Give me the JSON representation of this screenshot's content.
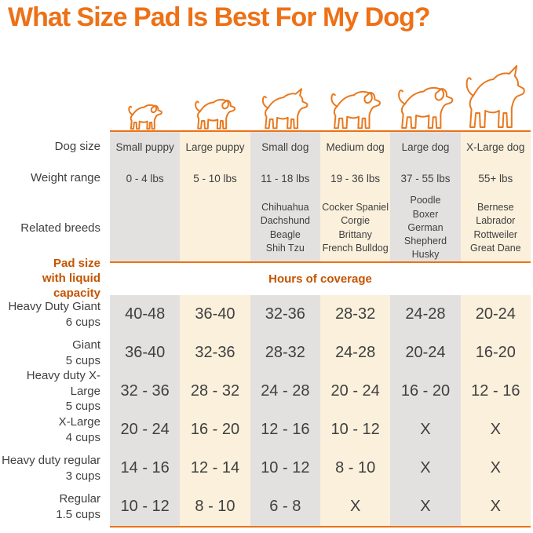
{
  "title": "What Size Pad Is Best For My Dog?",
  "row_labels": {
    "dog_size": "Dog size",
    "weight_range": "Weight range",
    "related_breeds": "Related breeds"
  },
  "section": {
    "pad_size_line1": "Pad size",
    "pad_size_line2": "with liquid capacity",
    "hours_label": "Hours of coverage"
  },
  "columns": [
    {
      "name": "Small puppy",
      "weight": "0 - 4 lbs",
      "breeds": []
    },
    {
      "name": "Large puppy",
      "weight": "5 - 10 lbs",
      "breeds": []
    },
    {
      "name": "Small dog",
      "weight": "11 - 18 lbs",
      "breeds": [
        "Chihuahua",
        "Dachshund",
        "Beagle",
        "Shih Tzu"
      ]
    },
    {
      "name": "Medium dog",
      "weight": "19 - 36 lbs",
      "breeds": [
        "Cocker Spaniel",
        "Corgie",
        "Brittany",
        "French Bulldog"
      ]
    },
    {
      "name": "Large dog",
      "weight": "37 - 55 lbs",
      "breeds": [
        "Poodle",
        "Boxer",
        "German Shepherd",
        "Husky"
      ]
    },
    {
      "name": "X-Large dog",
      "weight": "55+ lbs",
      "breeds": [
        "Bernese",
        "Labrador",
        "Rottweiler",
        "Great Dane"
      ]
    }
  ],
  "pad_rows": [
    {
      "label": "Heavy Duty Giant",
      "capacity": "6 cups",
      "values": [
        "40-48",
        "36-40",
        "32-36",
        "28-32",
        "24-28",
        "20-24"
      ]
    },
    {
      "label": "Giant",
      "capacity": "5 cups",
      "values": [
        "36-40",
        "32-36",
        "28-32",
        "24-28",
        "20-24",
        "16-20"
      ]
    },
    {
      "label": "Heavy duty X-Large",
      "capacity": "5 cups",
      "values": [
        "32 - 36",
        "28 - 32",
        "24 - 28",
        "20 - 24",
        "16 - 20",
        "12 - 16"
      ]
    },
    {
      "label": "X-Large",
      "capacity": "4 cups",
      "values": [
        "20 - 24",
        "16 - 20",
        "12 - 16",
        "10 - 12",
        "X",
        "X"
      ]
    },
    {
      "label": "Heavy duty regular",
      "capacity": "3 cups",
      "values": [
        "14 - 16",
        "12 - 14",
        "10 - 12",
        "8 - 10",
        "X",
        "X"
      ]
    },
    {
      "label": "Regular",
      "capacity": "1.5 cups",
      "values": [
        "10 - 12",
        "8 - 10",
        "6 - 8",
        "X",
        "X",
        "X"
      ]
    }
  ],
  "icons": [
    "small-puppy-dog-icon",
    "large-puppy-dog-icon",
    "small-dog-icon",
    "medium-dog-icon",
    "large-dog-icon",
    "x-large-dog-icon"
  ],
  "colors": {
    "accent_orange": "#ED7117",
    "section_orange": "#C45500",
    "dog_outline_orange": "#E8791F",
    "column_gray": "#E3E1E0",
    "column_cream": "#FAF0DC",
    "text_dark": "#3F3F3F"
  },
  "chart_data": {
    "type": "table",
    "title": "What Size Pad Is Best For My Dog?",
    "section_header": "Hours of coverage",
    "columns": [
      "Small puppy",
      "Large puppy",
      "Small dog",
      "Medium dog",
      "Large dog",
      "X-Large dog"
    ],
    "weight_ranges": [
      "0 - 4 lbs",
      "5 - 10 lbs",
      "11 - 18 lbs",
      "19 - 36 lbs",
      "37 - 55 lbs",
      "55+ lbs"
    ],
    "related_breeds": [
      [],
      [],
      [
        "Chihuahua",
        "Dachshund",
        "Beagle",
        "Shih Tzu"
      ],
      [
        "Cocker Spaniel",
        "Corgie",
        "Brittany",
        "French Bulldog"
      ],
      [
        "Poodle",
        "Boxer",
        "German Shepherd",
        "Husky"
      ],
      [
        "Bernese",
        "Labrador",
        "Rottweiler",
        "Great Dane"
      ]
    ],
    "rows": [
      {
        "pad": "Heavy Duty Giant",
        "capacity": "6 cups",
        "hours_of_coverage": [
          "40-48",
          "36-40",
          "32-36",
          "28-32",
          "24-28",
          "20-24"
        ]
      },
      {
        "pad": "Giant",
        "capacity": "5 cups",
        "hours_of_coverage": [
          "36-40",
          "32-36",
          "28-32",
          "24-28",
          "20-24",
          "16-20"
        ]
      },
      {
        "pad": "Heavy duty X-Large",
        "capacity": "5 cups",
        "hours_of_coverage": [
          "32 - 36",
          "28 - 32",
          "24 - 28",
          "20 - 24",
          "16 - 20",
          "12 - 16"
        ]
      },
      {
        "pad": "X-Large",
        "capacity": "4 cups",
        "hours_of_coverage": [
          "20 - 24",
          "16 - 20",
          "12 - 16",
          "10 - 12",
          "X",
          "X"
        ]
      },
      {
        "pad": "Heavy duty regular",
        "capacity": "3 cups",
        "hours_of_coverage": [
          "14 - 16",
          "12 - 14",
          "10 - 12",
          "8 - 10",
          "X",
          "X"
        ]
      },
      {
        "pad": "Regular",
        "capacity": "1.5 cups",
        "hours_of_coverage": [
          "10 - 12",
          "8 - 10",
          "6 - 8",
          "X",
          "X",
          "X"
        ]
      }
    ]
  }
}
